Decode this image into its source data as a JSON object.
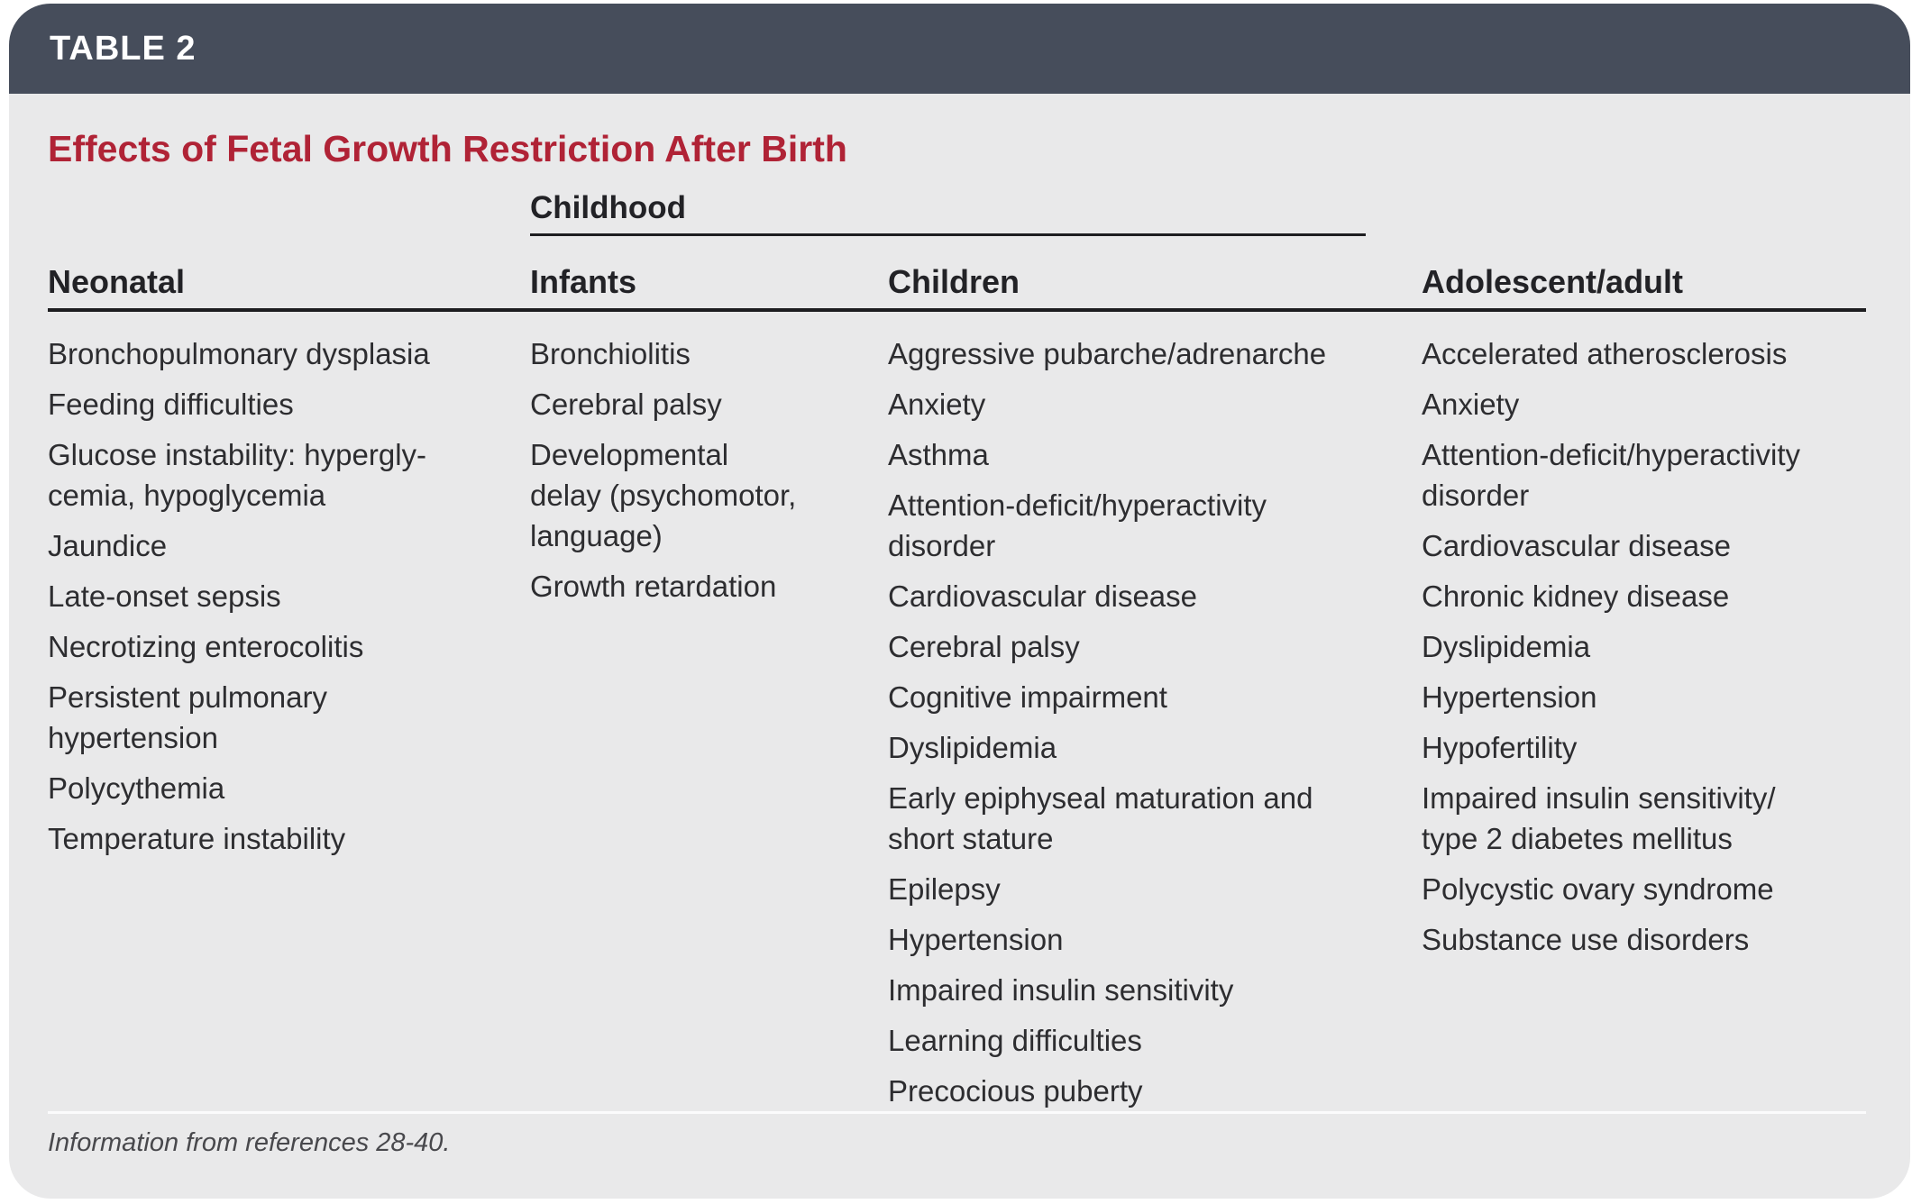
{
  "header": {
    "label": "TABLE 2"
  },
  "title": "Effects of Fetal Growth Restriction After Birth",
  "spanner": {
    "label": "Childhood"
  },
  "columns": [
    {
      "header": "Neonatal",
      "items": [
        "Bronchopulmonary dysplasia",
        "Feeding difficulties",
        "Glucose instability: hypergly-\ncemia, hypoglycemia",
        "Jaundice",
        "Late-onset sepsis",
        "Necrotizing enterocolitis",
        "Persistent pulmonary\nhypertension",
        "Polycythemia",
        "Temperature instability"
      ]
    },
    {
      "header": "Infants",
      "items": [
        "Bronchiolitis",
        "Cerebral palsy",
        "Developmental\ndelay (psychomotor,\nlanguage)",
        "Growth retardation"
      ]
    },
    {
      "header": "Children",
      "items": [
        "Aggressive pubarche/adrenarche",
        "Anxiety",
        "Asthma",
        "Attention-deficit/hyperactivity\ndisorder",
        "Cardiovascular disease",
        "Cerebral palsy",
        "Cognitive impairment",
        "Dyslipidemia",
        "Early epiphyseal maturation and\nshort stature",
        "Epilepsy",
        "Hypertension",
        "Impaired insulin sensitivity",
        "Learning difficulties",
        "Precocious puberty"
      ]
    },
    {
      "header": "Adolescent/adult",
      "items": [
        "Accelerated atherosclerosis",
        "Anxiety",
        "Attention-deficit/hyperactivity\ndisorder",
        "Cardiovascular disease",
        "Chronic kidney disease",
        "Dyslipidemia",
        "Hypertension",
        "Hypofertility",
        "Impaired insulin sensitivity/\ntype 2 diabetes mellitus",
        "Polycystic ovary syndrome",
        "Substance use disorders"
      ]
    }
  ],
  "footnote": "Information from references 28-40.",
  "colors": {
    "header_bar": "#464D5B",
    "body_bg": "#E9E9EA",
    "title_red": "#B02336",
    "text": "#2D2D30",
    "rule": "#1D1D20",
    "separator": "#FBFBFC"
  }
}
